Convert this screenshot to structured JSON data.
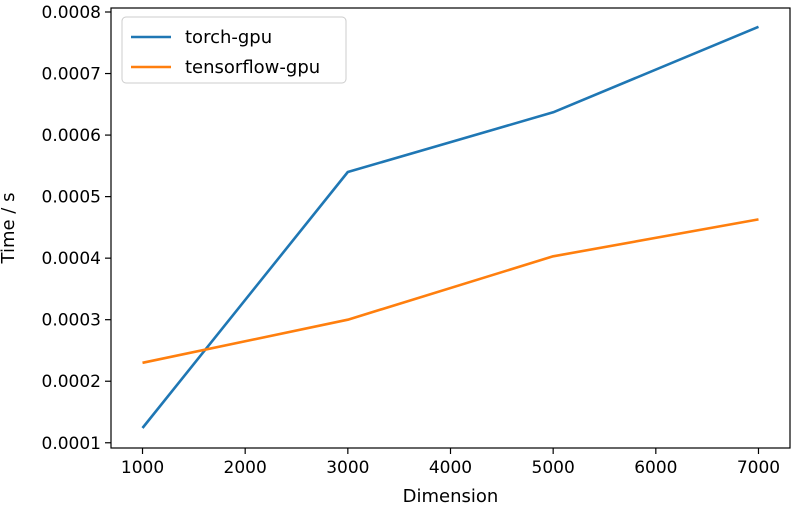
{
  "chart_data": {
    "type": "line",
    "title": "",
    "xlabel": "Dimension",
    "ylabel": "Time / s",
    "x": [
      1000,
      3000,
      5000,
      7000
    ],
    "series": [
      {
        "name": "torch-gpu",
        "color": "#1f77b4",
        "values": [
          0.000124,
          0.00054,
          0.000637,
          0.000776
        ]
      },
      {
        "name": "tensorflow-gpu",
        "color": "#ff7f0e",
        "values": [
          0.00023,
          0.0003,
          0.000403,
          0.000463
        ]
      }
    ],
    "xticks": [
      1000,
      2000,
      3000,
      4000,
      5000,
      6000,
      7000
    ],
    "xtick_labels": [
      "1000",
      "2000",
      "3000",
      "4000",
      "5000",
      "6000",
      "7000"
    ],
    "yticks": [
      0.0001,
      0.0002,
      0.0003,
      0.0004,
      0.0005,
      0.0006,
      0.0007,
      0.0008
    ],
    "ytick_labels": [
      "0.0001",
      "0.0002",
      "0.0003",
      "0.0004",
      "0.0005",
      "0.0006",
      "0.0007",
      "0.0008"
    ],
    "xlim": [
      693,
      7307
    ],
    "ylim": [
      9.15e-05,
      0.0008065
    ],
    "grid": false,
    "legend_position": "top-left"
  }
}
